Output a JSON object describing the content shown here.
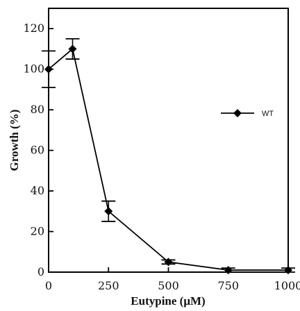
{
  "chart_data": {
    "type": "line",
    "title": "",
    "xlabel": "Eutypine (μM)",
    "ylabel": "Growth (%)",
    "xlim": [
      0,
      1000
    ],
    "ylim": [
      0,
      130
    ],
    "xticks": [
      0,
      250,
      500,
      750,
      1000
    ],
    "yticks": [
      0,
      20,
      40,
      60,
      80,
      100,
      120
    ],
    "grid": false,
    "legend_position": "top-right",
    "series": [
      {
        "name": "WT",
        "marker": "diamond",
        "color": "#000000",
        "x": [
          0,
          100,
          250,
          500,
          750,
          1000
        ],
        "y": [
          100,
          110,
          30,
          5,
          1,
          1
        ],
        "error": [
          9,
          5,
          5,
          1,
          1,
          1
        ]
      }
    ]
  }
}
